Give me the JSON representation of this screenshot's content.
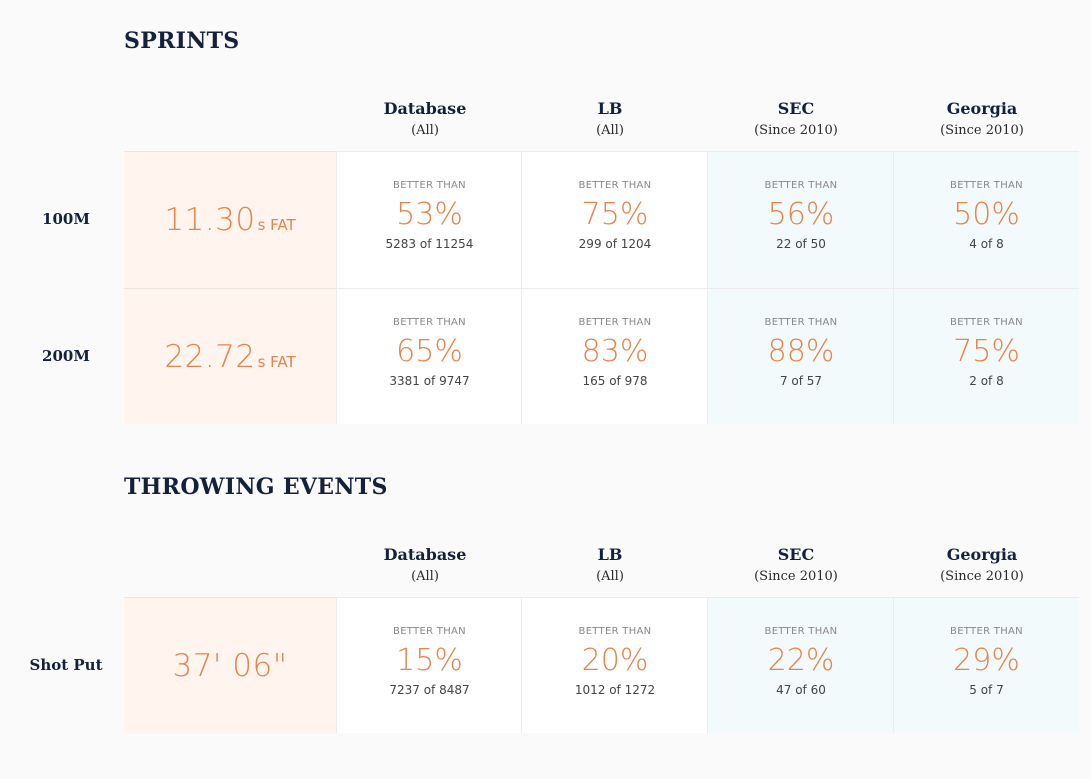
{
  "sections": [
    {
      "title": "SPRINTS",
      "columns": [
        {
          "name": "Database",
          "sub": "(All)"
        },
        {
          "name": "LB",
          "sub": "(All)"
        },
        {
          "name": "SEC",
          "sub": "(Since 2010)"
        },
        {
          "name": "Georgia",
          "sub": "(Since 2010)"
        }
      ],
      "rows": [
        {
          "label": "100M",
          "value": "11.30",
          "unit": "s FAT",
          "stats": [
            {
              "label": "BETTER THAN",
              "pct": "53%",
              "count": "5283 of 11254"
            },
            {
              "label": "BETTER THAN",
              "pct": "75%",
              "count": "299 of 1204"
            },
            {
              "label": "BETTER THAN",
              "pct": "56%",
              "count": "22 of 50"
            },
            {
              "label": "BETTER THAN",
              "pct": "50%",
              "count": "4 of 8"
            }
          ]
        },
        {
          "label": "200M",
          "value": "22.72",
          "unit": "s FAT",
          "stats": [
            {
              "label": "BETTER THAN",
              "pct": "65%",
              "count": "3381 of 9747"
            },
            {
              "label": "BETTER THAN",
              "pct": "83%",
              "count": "165 of 978"
            },
            {
              "label": "BETTER THAN",
              "pct": "88%",
              "count": "7 of 57"
            },
            {
              "label": "BETTER THAN",
              "pct": "75%",
              "count": "2 of 8"
            }
          ]
        }
      ]
    },
    {
      "title": "THROWING EVENTS",
      "columns": [
        {
          "name": "Database",
          "sub": "(All)"
        },
        {
          "name": "LB",
          "sub": "(All)"
        },
        {
          "name": "SEC",
          "sub": "(Since 2010)"
        },
        {
          "name": "Georgia",
          "sub": "(Since 2010)"
        }
      ],
      "rows": [
        {
          "label": "Shot Put",
          "value": "37' 06\"",
          "unit": "",
          "stats": [
            {
              "label": "BETTER THAN",
              "pct": "15%",
              "count": "7237 of 8487"
            },
            {
              "label": "BETTER THAN",
              "pct": "20%",
              "count": "1012 of 1272"
            },
            {
              "label": "BETTER THAN",
              "pct": "22%",
              "count": "47 of 60"
            },
            {
              "label": "BETTER THAN",
              "pct": "29%",
              "count": "5 of 7"
            }
          ]
        }
      ]
    }
  ]
}
